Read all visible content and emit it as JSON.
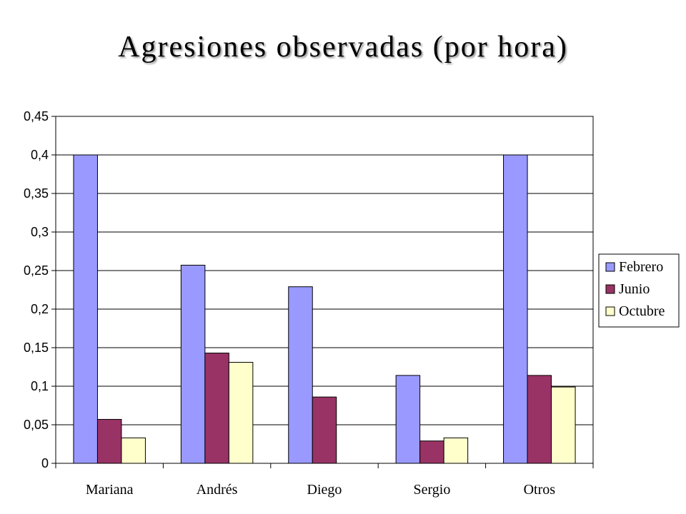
{
  "chart_data": {
    "type": "bar",
    "title": "Agresiones observadas (por hora)",
    "categories": [
      "Mariana",
      "Andrés",
      "Diego",
      "Sergio",
      "Otros"
    ],
    "series": [
      {
        "name": "Febrero",
        "color": "#9999ff",
        "values": [
          0.4,
          0.257,
          0.229,
          0.114,
          0.4
        ]
      },
      {
        "name": "Junio",
        "color": "#993366",
        "values": [
          0.057,
          0.143,
          0.086,
          0.029,
          0.114
        ]
      },
      {
        "name": "Octubre",
        "color": "#ffffcc",
        "values": [
          0.033,
          0.131,
          0,
          0.033,
          0.099
        ]
      }
    ],
    "ylim": [
      0,
      0.45
    ],
    "yticks": [
      0,
      0.05,
      0.1,
      0.15,
      0.2,
      0.25,
      0.3,
      0.35,
      0.4,
      0.45
    ],
    "ytick_labels": [
      "0",
      "0,05",
      "0,1",
      "0,15",
      "0,2",
      "0,25",
      "0,3",
      "0,35",
      "0,4",
      "0,45"
    ],
    "grid": true,
    "legend": "right",
    "xlabel": "",
    "ylabel": ""
  }
}
